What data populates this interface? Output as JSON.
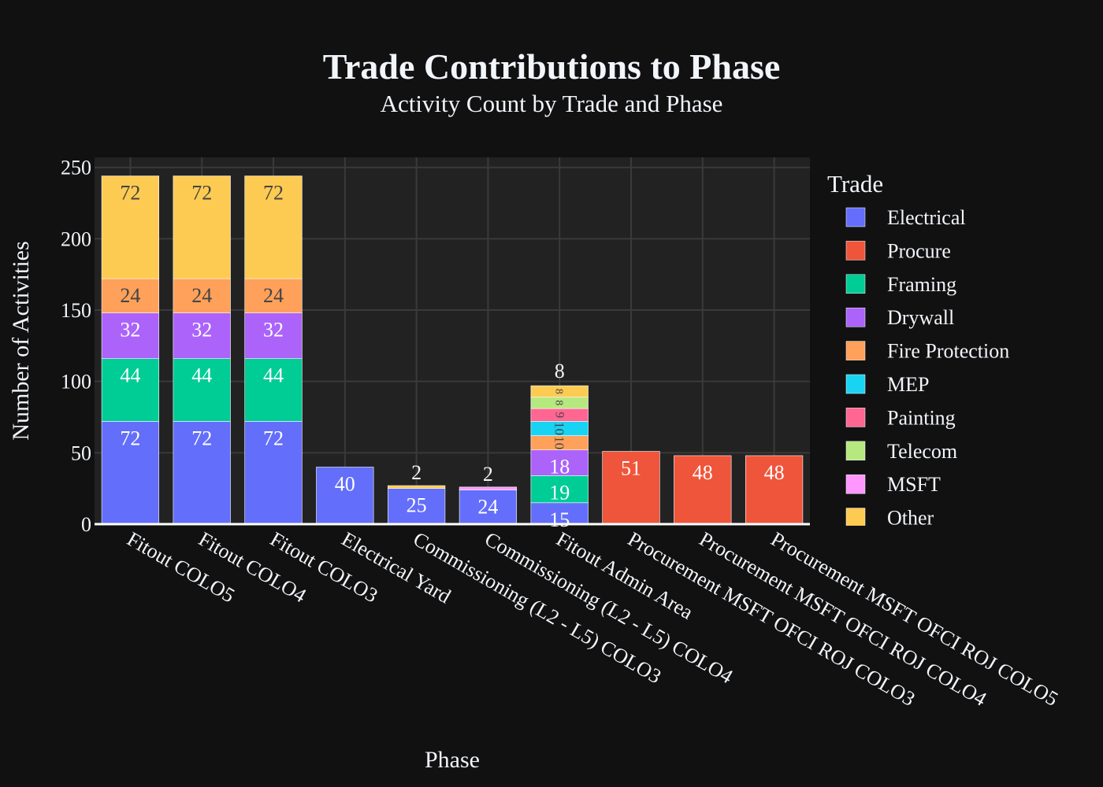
{
  "chart_data": {
    "type": "bar",
    "barmode": "stack",
    "title": "Trade Contributions to Phase",
    "subtitle": "Activity Count by Trade and Phase",
    "xlabel": "Phase",
    "ylabel": "Number of Activities",
    "ylim": [
      0,
      257
    ],
    "yticks": [
      0,
      50,
      100,
      150,
      200,
      250
    ],
    "grid": true,
    "legend_title": "Trade",
    "legend_position": "right",
    "categories": [
      "Fitout COLO5",
      "Fitout COLO4",
      "Fitout COLO3",
      "Electrical Yard",
      "Commissioning (L2 - L5) COLO3",
      "Commissioning (L2 - L5) COLO4",
      "Fitout Admin Area",
      "Procurement MSFT OFCI ROJ COLO3",
      "Procurement MSFT OFCI ROJ COLO4",
      "Procurement MSFT OFCI ROJ COLO5"
    ],
    "series": [
      {
        "name": "Electrical",
        "color": "#636efa",
        "values": [
          72,
          72,
          72,
          40,
          25,
          24,
          15,
          0,
          0,
          0
        ]
      },
      {
        "name": "Procure",
        "color": "#EF553B",
        "values": [
          0,
          0,
          0,
          0,
          0,
          0,
          0,
          51,
          48,
          48
        ]
      },
      {
        "name": "Framing",
        "color": "#00cc96",
        "values": [
          44,
          44,
          44,
          0,
          0,
          0,
          19,
          0,
          0,
          0
        ]
      },
      {
        "name": "Drywall",
        "color": "#ab63fa",
        "values": [
          32,
          32,
          32,
          0,
          0,
          0,
          18,
          0,
          0,
          0
        ]
      },
      {
        "name": "Fire Protection",
        "color": "#FFA15A",
        "values": [
          24,
          24,
          24,
          0,
          0,
          0,
          10,
          0,
          0,
          0
        ]
      },
      {
        "name": "MEP",
        "color": "#19d3f3",
        "values": [
          0,
          0,
          0,
          0,
          0,
          0,
          10,
          0,
          0,
          0
        ]
      },
      {
        "name": "Painting",
        "color": "#FF6692",
        "values": [
          0,
          0,
          0,
          0,
          0,
          0,
          9,
          0,
          0,
          0
        ]
      },
      {
        "name": "Telecom",
        "color": "#B6E880",
        "values": [
          0,
          0,
          0,
          0,
          0,
          0,
          8,
          0,
          0,
          0
        ]
      },
      {
        "name": "MSFT",
        "color": "#FF97FF",
        "values": [
          0,
          0,
          0,
          0,
          0,
          2,
          0,
          0,
          0,
          0
        ]
      },
      {
        "name": "Other",
        "color": "#FECB52",
        "values": [
          72,
          72,
          72,
          0,
          2,
          0,
          8,
          0,
          0,
          0
        ]
      }
    ]
  }
}
